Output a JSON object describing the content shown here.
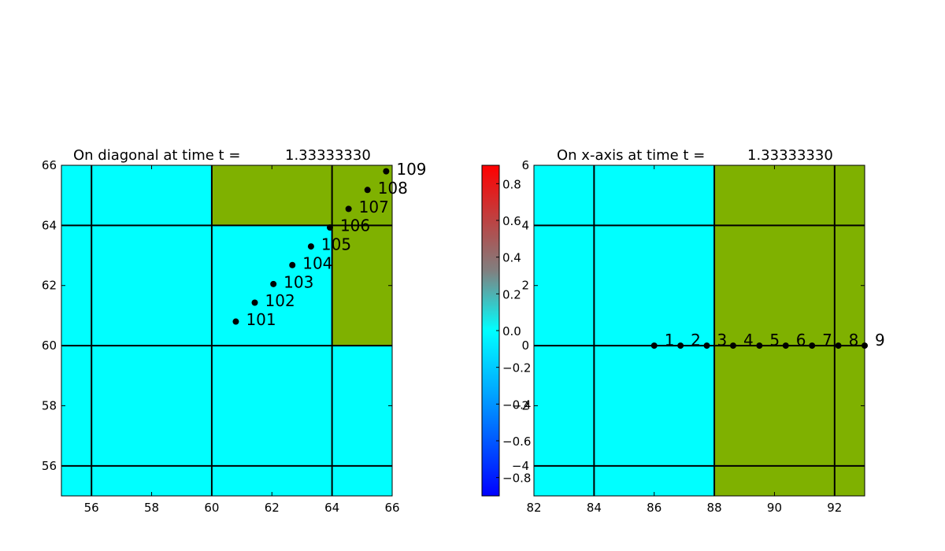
{
  "chart_data": [
    {
      "type": "heatmap",
      "title_prefix": "On diagonal at time t =",
      "title_value": "1.33333330",
      "xlim": [
        55,
        66
      ],
      "ylim": [
        55,
        66
      ],
      "xticks": [
        56,
        58,
        60,
        62,
        64,
        66
      ],
      "yticks": [
        56,
        58,
        60,
        62,
        64,
        66
      ],
      "grid_lines_x": [
        56,
        60,
        64
      ],
      "grid_lines_y": [
        56,
        60,
        64
      ],
      "fill_colors": {
        "base": "#00ffff",
        "region": "#7fb100"
      },
      "regions": [
        {
          "x": [
            60,
            64
          ],
          "y": [
            64,
            66
          ],
          "color": "#7fb100"
        },
        {
          "x": [
            64,
            66
          ],
          "y": [
            60,
            66
          ],
          "color": "#7fb100"
        }
      ],
      "points": [
        {
          "label": "101",
          "x": 60.8,
          "y": 60.8
        },
        {
          "label": "102",
          "x": 61.43,
          "y": 61.43
        },
        {
          "label": "103",
          "x": 62.05,
          "y": 62.05
        },
        {
          "label": "104",
          "x": 62.68,
          "y": 62.68
        },
        {
          "label": "105",
          "x": 63.3,
          "y": 63.3
        },
        {
          "label": "106",
          "x": 63.93,
          "y": 63.93
        },
        {
          "label": "107",
          "x": 64.55,
          "y": 64.55
        },
        {
          "label": "108",
          "x": 65.18,
          "y": 65.18
        },
        {
          "label": "109",
          "x": 65.8,
          "y": 65.8
        }
      ]
    },
    {
      "type": "heatmap",
      "title_prefix": "On x-axis at time t =",
      "title_value": "1.33333330",
      "xlim": [
        82,
        93
      ],
      "ylim": [
        -5,
        6
      ],
      "xticks": [
        82,
        84,
        86,
        88,
        90,
        92
      ],
      "yticks": [
        -4,
        -2,
        0,
        2,
        4,
        6
      ],
      "grid_lines_x": [
        84,
        88,
        92
      ],
      "grid_lines_y": [
        -4,
        0,
        4
      ],
      "fill_colors": {
        "base": "#00ffff",
        "region": "#7fb100"
      },
      "regions": [
        {
          "x": [
            88,
            93
          ],
          "y": [
            -5,
            6
          ],
          "color": "#7fb100"
        }
      ],
      "points": [
        {
          "label": "1",
          "x": 86.0,
          "y": 0
        },
        {
          "label": "2",
          "x": 86.875,
          "y": 0
        },
        {
          "label": "3",
          "x": 87.75,
          "y": 0
        },
        {
          "label": "4",
          "x": 88.625,
          "y": 0
        },
        {
          "label": "5",
          "x": 89.5,
          "y": 0
        },
        {
          "label": "6",
          "x": 90.375,
          "y": 0
        },
        {
          "label": "7",
          "x": 91.25,
          "y": 0
        },
        {
          "label": "8",
          "x": 92.125,
          "y": 0
        },
        {
          "label": "9",
          "x": 93.0,
          "y": 0
        }
      ]
    }
  ],
  "colorbar": {
    "range": [
      -0.9,
      0.9
    ],
    "ticks": [
      "0.8",
      "0.6",
      "0.4",
      "0.2",
      "0.0",
      "−0.2",
      "−0.4",
      "−0.6",
      "−0.8"
    ],
    "tick_values": [
      0.8,
      0.6,
      0.4,
      0.2,
      0.0,
      -0.2,
      -0.4,
      -0.6,
      -0.8
    ],
    "colors": {
      "bottom": "#0000ff",
      "lower": "#00aaff",
      "middle": "#00ffff",
      "upper": "#808080",
      "top": "#ff0000"
    }
  }
}
